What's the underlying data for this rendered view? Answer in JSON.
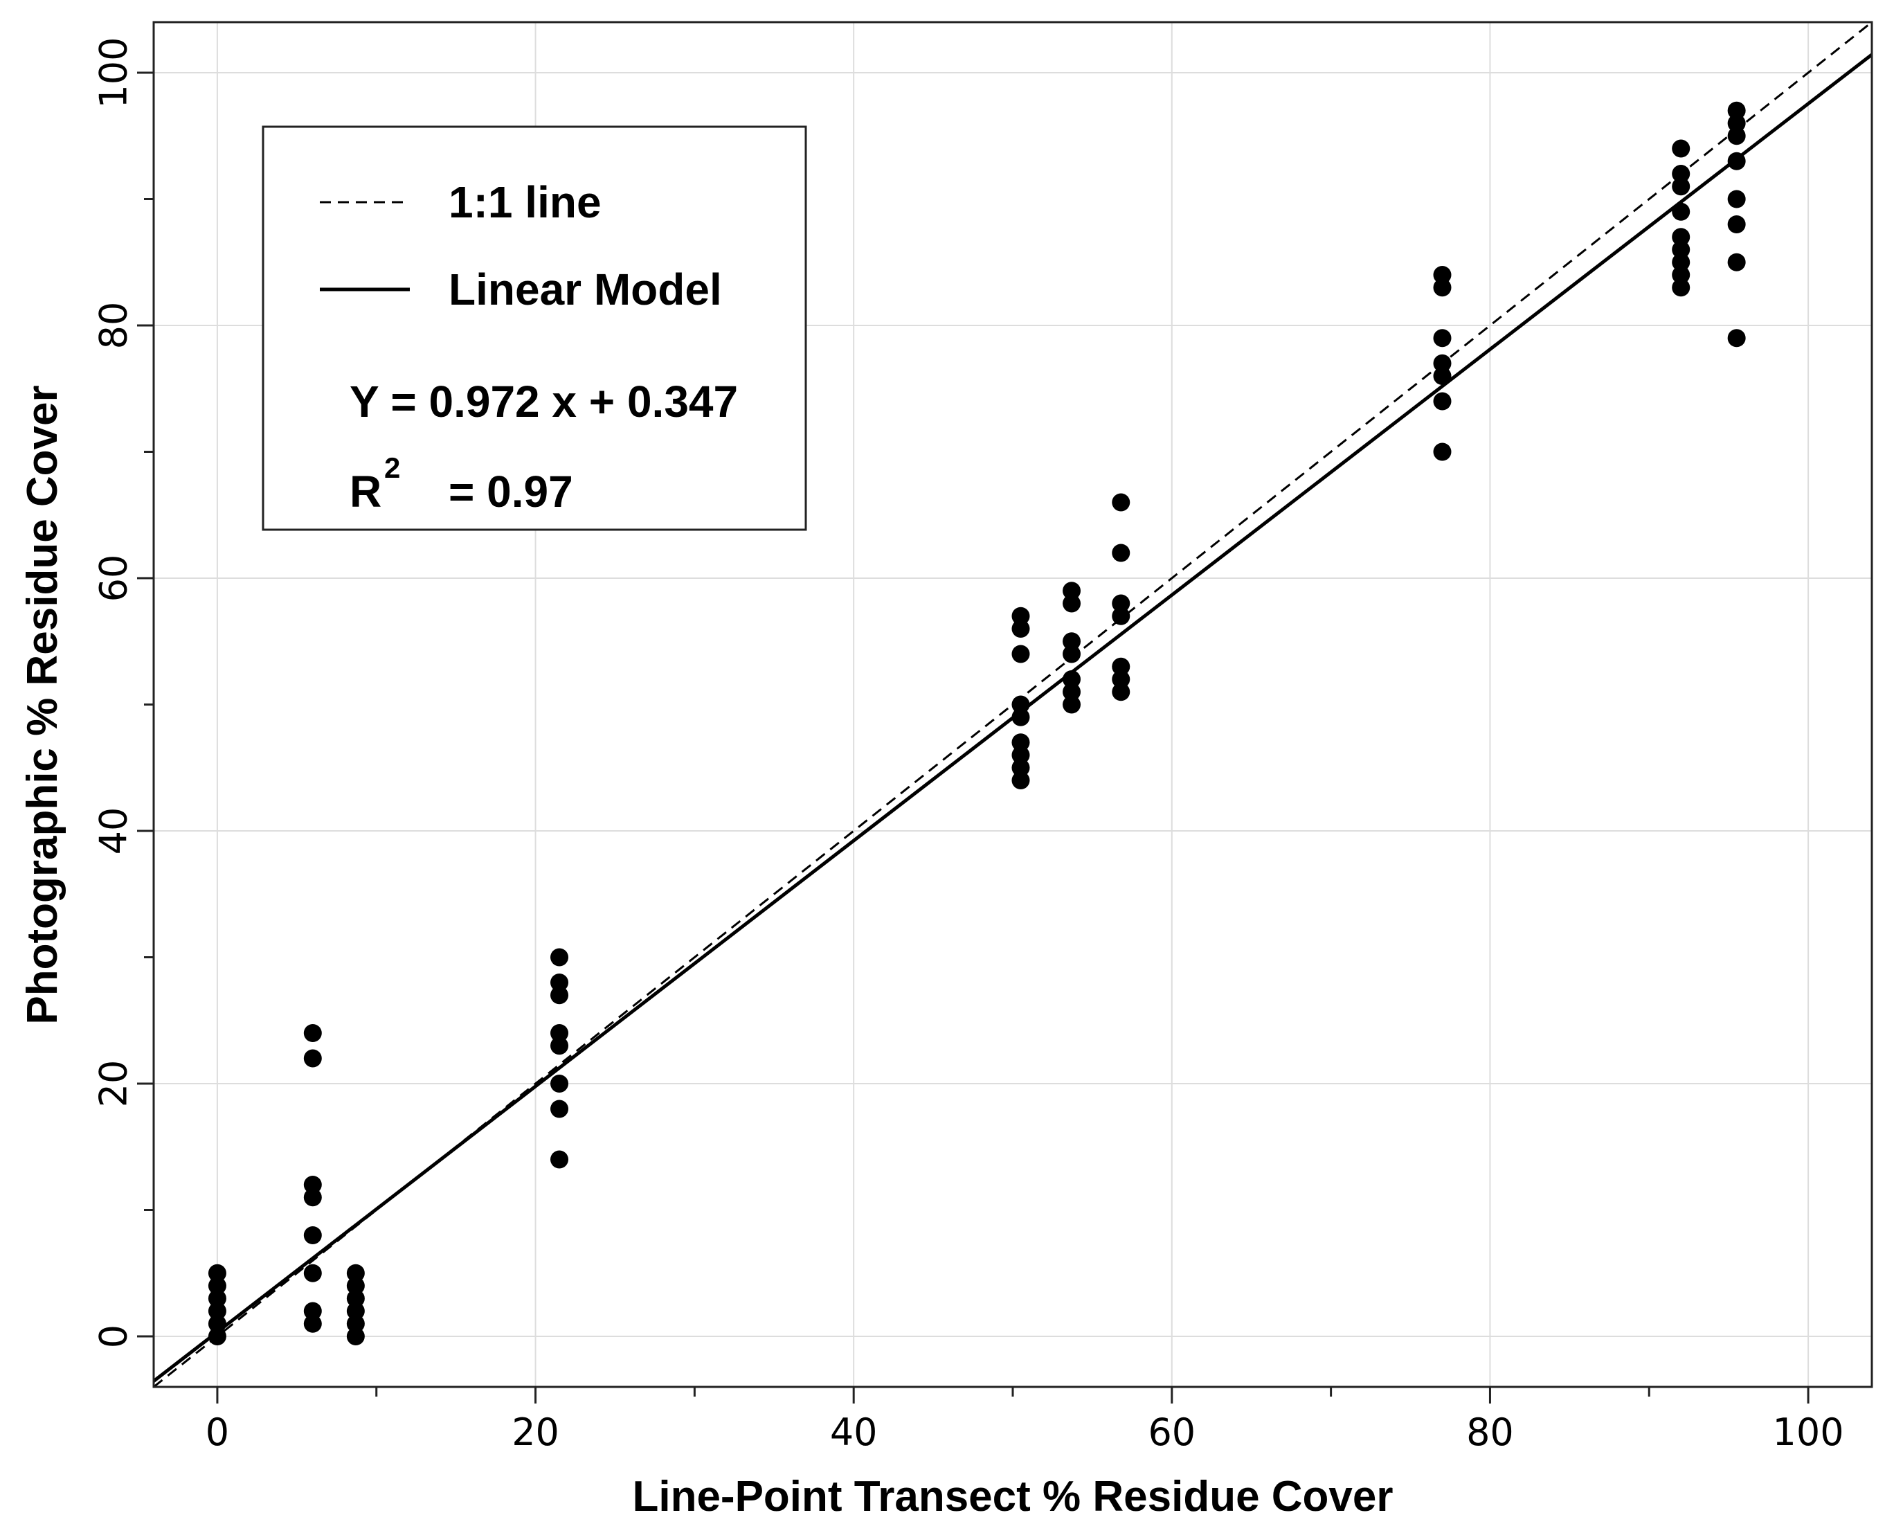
{
  "chart_data": {
    "type": "scatter",
    "xlabel": "Line-Point Transect % Residue Cover",
    "ylabel": "Photographic % Residue Cover",
    "xlim": [
      -4,
      104
    ],
    "ylim": [
      -4,
      104
    ],
    "x_ticks": [
      0,
      20,
      40,
      60,
      80,
      100
    ],
    "x_minor_ticks": [
      10,
      30,
      50,
      70,
      90
    ],
    "y_ticks": [
      0,
      20,
      40,
      60,
      80,
      100
    ],
    "y_minor_ticks": [
      10,
      30,
      50,
      70,
      90
    ],
    "grid": true,
    "legend": {
      "placement": "top-left",
      "entries": [
        {
          "label": "1:1 line",
          "style": "dashed"
        },
        {
          "label": "Linear Model",
          "style": "solid"
        }
      ],
      "equation": "Y = 0.972 x + 0.347",
      "r2_label": "R",
      "r2_sup": "2",
      "r2_value": "= 0.97"
    },
    "lines": [
      {
        "kind": "identity",
        "slope": 1,
        "intercept": 0,
        "style": "dashed"
      },
      {
        "kind": "linear_model",
        "slope": 0.972,
        "intercept": 0.347,
        "style": "solid"
      }
    ],
    "points": [
      [
        0,
        0
      ],
      [
        0,
        1
      ],
      [
        0,
        2
      ],
      [
        0,
        3
      ],
      [
        0,
        4
      ],
      [
        0,
        5
      ],
      [
        6,
        1
      ],
      [
        6,
        2
      ],
      [
        6,
        5
      ],
      [
        6,
        8
      ],
      [
        6,
        11
      ],
      [
        6,
        12
      ],
      [
        6,
        22
      ],
      [
        6,
        24
      ],
      [
        8.7,
        0
      ],
      [
        8.7,
        1
      ],
      [
        8.7,
        2
      ],
      [
        8.7,
        3
      ],
      [
        8.7,
        4
      ],
      [
        8.7,
        5
      ],
      [
        21.5,
        14
      ],
      [
        21.5,
        18
      ],
      [
        21.5,
        20
      ],
      [
        21.5,
        23
      ],
      [
        21.5,
        24
      ],
      [
        21.5,
        27
      ],
      [
        21.5,
        28
      ],
      [
        21.5,
        30
      ],
      [
        50.5,
        44
      ],
      [
        50.5,
        45
      ],
      [
        50.5,
        46
      ],
      [
        50.5,
        47
      ],
      [
        50.5,
        49
      ],
      [
        50.5,
        50
      ],
      [
        50.5,
        54
      ],
      [
        50.5,
        56
      ],
      [
        50.5,
        57
      ],
      [
        53.7,
        50
      ],
      [
        53.7,
        51
      ],
      [
        53.7,
        52
      ],
      [
        53.7,
        54
      ],
      [
        53.7,
        55
      ],
      [
        53.7,
        58
      ],
      [
        53.7,
        59
      ],
      [
        56.8,
        51
      ],
      [
        56.8,
        52
      ],
      [
        56.8,
        53
      ],
      [
        56.8,
        57
      ],
      [
        56.8,
        58
      ],
      [
        56.8,
        62
      ],
      [
        56.8,
        66
      ],
      [
        77,
        70
      ],
      [
        77,
        74
      ],
      [
        77,
        76
      ],
      [
        77,
        77
      ],
      [
        77,
        79
      ],
      [
        77,
        83
      ],
      [
        77,
        84
      ],
      [
        92,
        83
      ],
      [
        92,
        84
      ],
      [
        92,
        85
      ],
      [
        92,
        86
      ],
      [
        92,
        87
      ],
      [
        92,
        89
      ],
      [
        92,
        91
      ],
      [
        92,
        92
      ],
      [
        92,
        94
      ],
      [
        95.5,
        79
      ],
      [
        95.5,
        85
      ],
      [
        95.5,
        88
      ],
      [
        95.5,
        90
      ],
      [
        95.5,
        93
      ],
      [
        95.5,
        95
      ],
      [
        95.5,
        96
      ],
      [
        95.5,
        97
      ]
    ]
  }
}
